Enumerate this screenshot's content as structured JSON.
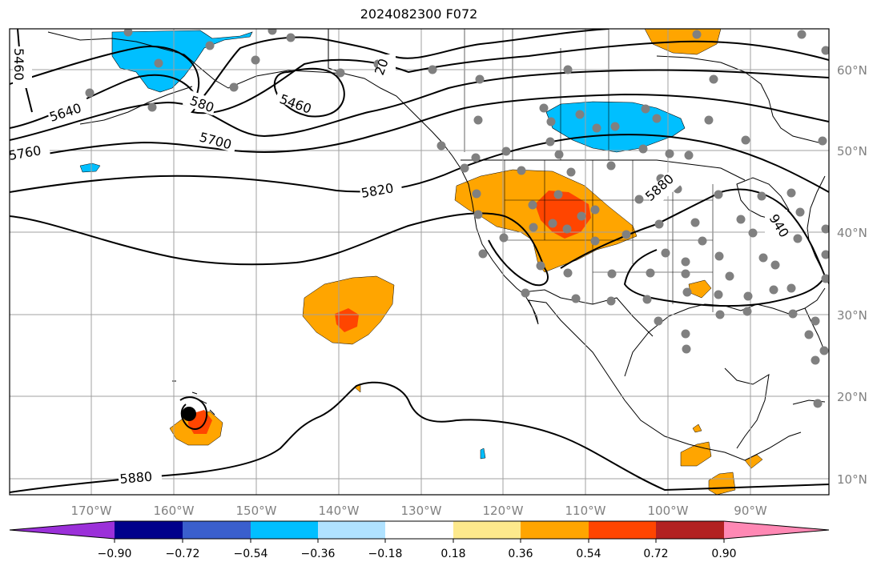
{
  "title": "2024082300 F072",
  "colors": {
    "purple": "#9b30d9",
    "navy": "#00008b",
    "blue": "#3a5fcd",
    "deep_sky": "#00bfff",
    "light_blue": "#b0e2ff",
    "white": "#ffffff",
    "light_yellow": "#fde98c",
    "orange": "#ffa500",
    "orange_red": "#ff4500",
    "firebrick": "#b22222",
    "pink": "#ff88b4",
    "station": "#808080",
    "grid": "#a0a0a0"
  },
  "lon_ticks": [
    "170°W",
    "160°W",
    "150°W",
    "140°W",
    "130°W",
    "120°W",
    "110°W",
    "100°W",
    "90°W"
  ],
  "lat_ticks": [
    "60°N",
    "50°N",
    "40°N",
    "30°N",
    "20°N",
    "10°N"
  ],
  "contour_labels": [
    "5460",
    "5460",
    "5640",
    "580",
    "5700",
    "5760",
    "5820",
    "5880",
    "5880",
    "20",
    "940"
  ],
  "colorbar": {
    "ticks": [
      "−0.90",
      "−0.72",
      "−0.54",
      "−0.36",
      "−0.18",
      "0.18",
      "0.36",
      "0.54",
      "0.72",
      "0.90"
    ]
  }
}
